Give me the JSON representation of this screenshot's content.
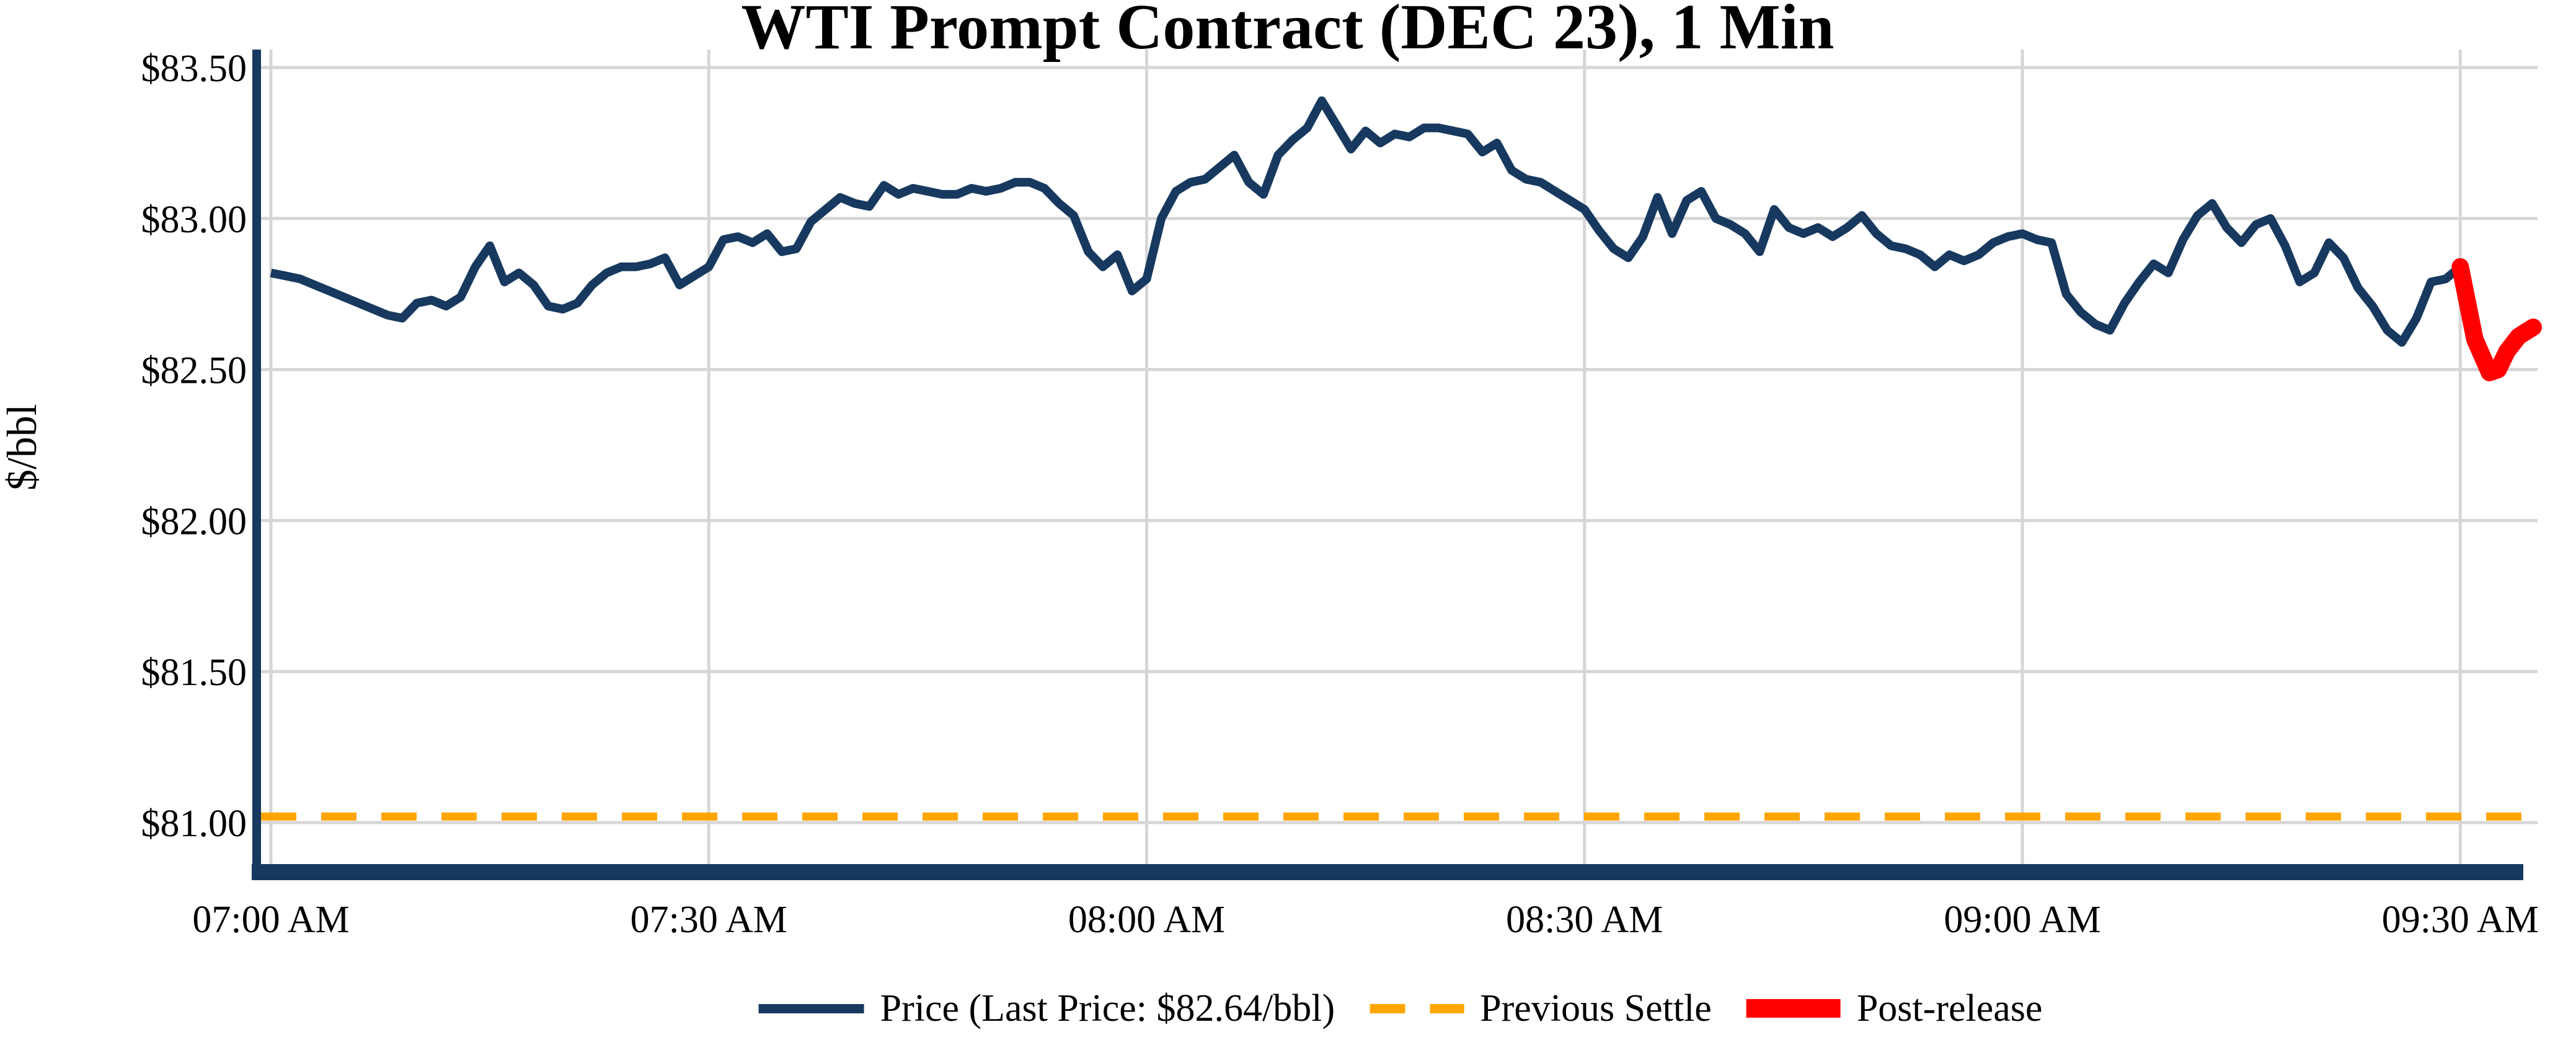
{
  "chart_data": {
    "type": "line",
    "title": "WTI Prompt Contract (DEC 23), 1 Min",
    "ylabel": "$/bbl",
    "xlabel": "",
    "grid": true,
    "legend_position": "bottom-center",
    "background_color": "#ffffff",
    "gridline_color": "#d6d6d6",
    "axis_spine_color": "#17395f",
    "ylim": [
      80.86,
      83.56
    ],
    "x_range_minutes_from_0700": [
      0,
      155.2
    ],
    "y_ticks": [
      {
        "value": 83.5,
        "label": "$83.50"
      },
      {
        "value": 83.0,
        "label": "$83.00"
      },
      {
        "value": 82.5,
        "label": "$82.50"
      },
      {
        "value": 82.0,
        "label": "$82.00"
      },
      {
        "value": 81.5,
        "label": "$81.50"
      },
      {
        "value": 81.0,
        "label": "$81.00"
      }
    ],
    "x_ticks": [
      {
        "minute": 0,
        "label": "07:00 AM"
      },
      {
        "minute": 30,
        "label": "07:30 AM"
      },
      {
        "minute": 60,
        "label": "08:00 AM"
      },
      {
        "minute": 90,
        "label": "08:30 AM"
      },
      {
        "minute": 120,
        "label": "09:00 AM"
      },
      {
        "minute": 150,
        "label": "09:30 AM"
      }
    ],
    "legend": [
      {
        "label": "Price (Last Price: $82.64/bbl)",
        "swatch": "line",
        "color": "#17395f"
      },
      {
        "label": "Previous Settle",
        "swatch": "dashed",
        "color": "#ffa500"
      },
      {
        "label": "Post-release",
        "swatch": "thick",
        "color": "#ff0000"
      }
    ],
    "last_price": "$82.64/bbl",
    "previous_settle_value": 81.02,
    "series": [
      {
        "name": "Price",
        "color": "#17395f",
        "width": 14,
        "style": "solid",
        "points": [
          [
            0,
            82.82
          ],
          [
            1,
            82.81
          ],
          [
            2,
            82.8
          ],
          [
            3,
            82.78
          ],
          [
            4,
            82.76
          ],
          [
            5,
            82.74
          ],
          [
            6,
            82.72
          ],
          [
            7,
            82.7
          ],
          [
            8,
            82.68
          ],
          [
            9,
            82.67
          ],
          [
            10,
            82.72
          ],
          [
            11,
            82.73
          ],
          [
            12,
            82.71
          ],
          [
            13,
            82.74
          ],
          [
            14,
            82.84
          ],
          [
            15,
            82.91
          ],
          [
            16,
            82.79
          ],
          [
            17,
            82.82
          ],
          [
            18,
            82.78
          ],
          [
            19,
            82.71
          ],
          [
            20,
            82.7
          ],
          [
            21,
            82.72
          ],
          [
            22,
            82.78
          ],
          [
            23,
            82.82
          ],
          [
            24,
            82.84
          ],
          [
            25,
            82.84
          ],
          [
            26,
            82.85
          ],
          [
            27,
            82.87
          ],
          [
            28,
            82.78
          ],
          [
            29,
            82.81
          ],
          [
            30,
            82.84
          ],
          [
            31,
            82.93
          ],
          [
            32,
            82.94
          ],
          [
            33,
            82.92
          ],
          [
            34,
            82.95
          ],
          [
            35,
            82.89
          ],
          [
            36,
            82.9
          ],
          [
            37,
            82.99
          ],
          [
            38,
            83.03
          ],
          [
            39,
            83.07
          ],
          [
            40,
            83.05
          ],
          [
            41,
            83.04
          ],
          [
            42,
            83.11
          ],
          [
            43,
            83.08
          ],
          [
            44,
            83.1
          ],
          [
            45,
            83.09
          ],
          [
            46,
            83.08
          ],
          [
            47,
            83.08
          ],
          [
            48,
            83.1
          ],
          [
            49,
            83.09
          ],
          [
            50,
            83.1
          ],
          [
            51,
            83.12
          ],
          [
            52,
            83.12
          ],
          [
            53,
            83.1
          ],
          [
            54,
            83.05
          ],
          [
            55,
            83.01
          ],
          [
            56,
            82.89
          ],
          [
            57,
            82.84
          ],
          [
            58,
            82.88
          ],
          [
            59,
            82.76
          ],
          [
            60,
            82.8
          ],
          [
            61,
            83.0
          ],
          [
            62,
            83.09
          ],
          [
            63,
            83.12
          ],
          [
            64,
            83.13
          ],
          [
            65,
            83.17
          ],
          [
            66,
            83.21
          ],
          [
            67,
            83.12
          ],
          [
            68,
            83.08
          ],
          [
            69,
            83.21
          ],
          [
            70,
            83.26
          ],
          [
            71,
            83.3
          ],
          [
            72,
            83.39
          ],
          [
            73,
            83.31
          ],
          [
            74,
            83.23
          ],
          [
            75,
            83.29
          ],
          [
            76,
            83.25
          ],
          [
            77,
            83.28
          ],
          [
            78,
            83.27
          ],
          [
            79,
            83.3
          ],
          [
            80,
            83.3
          ],
          [
            81,
            83.29
          ],
          [
            82,
            83.28
          ],
          [
            83,
            83.22
          ],
          [
            84,
            83.25
          ],
          [
            85,
            83.16
          ],
          [
            86,
            83.13
          ],
          [
            87,
            83.12
          ],
          [
            88,
            83.09
          ],
          [
            89,
            83.06
          ],
          [
            90,
            83.03
          ],
          [
            91,
            82.96
          ],
          [
            92,
            82.9
          ],
          [
            93,
            82.87
          ],
          [
            94,
            82.94
          ],
          [
            95,
            83.07
          ],
          [
            96,
            82.95
          ],
          [
            97,
            83.06
          ],
          [
            98,
            83.09
          ],
          [
            99,
            83.0
          ],
          [
            100,
            82.98
          ],
          [
            101,
            82.95
          ],
          [
            102,
            82.89
          ],
          [
            103,
            83.03
          ],
          [
            104,
            82.97
          ],
          [
            105,
            82.95
          ],
          [
            106,
            82.97
          ],
          [
            107,
            82.94
          ],
          [
            108,
            82.97
          ],
          [
            109,
            83.01
          ],
          [
            110,
            82.95
          ],
          [
            111,
            82.91
          ],
          [
            112,
            82.9
          ],
          [
            113,
            82.88
          ],
          [
            114,
            82.84
          ],
          [
            115,
            82.88
          ],
          [
            116,
            82.86
          ],
          [
            117,
            82.88
          ],
          [
            118,
            82.92
          ],
          [
            119,
            82.94
          ],
          [
            120,
            82.95
          ],
          [
            121,
            82.93
          ],
          [
            122,
            82.92
          ],
          [
            123,
            82.75
          ],
          [
            124,
            82.69
          ],
          [
            125,
            82.65
          ],
          [
            126,
            82.63
          ],
          [
            127,
            82.72
          ],
          [
            128,
            82.79
          ],
          [
            129,
            82.85
          ],
          [
            130,
            82.82
          ],
          [
            131,
            82.93
          ],
          [
            132,
            83.01
          ],
          [
            133,
            83.05
          ],
          [
            134,
            82.97
          ],
          [
            135,
            82.92
          ],
          [
            136,
            82.98
          ],
          [
            137,
            83.0
          ],
          [
            138,
            82.91
          ],
          [
            139,
            82.79
          ],
          [
            140,
            82.82
          ],
          [
            141,
            82.92
          ],
          [
            142,
            82.87
          ],
          [
            143,
            82.77
          ],
          [
            144,
            82.71
          ],
          [
            145,
            82.63
          ],
          [
            146,
            82.59
          ],
          [
            147,
            82.67
          ],
          [
            148,
            82.79
          ],
          [
            149,
            82.8
          ],
          [
            150,
            82.84
          ]
        ]
      },
      {
        "name": "Post-release",
        "color": "#ff0000",
        "width": 28,
        "style": "solid-round",
        "points": [
          [
            150,
            82.84
          ],
          [
            151,
            82.6
          ],
          [
            152,
            82.49
          ],
          [
            152.6,
            82.5
          ],
          [
            153.2,
            82.56
          ],
          [
            154,
            82.61
          ],
          [
            155,
            82.64
          ]
        ]
      }
    ]
  }
}
